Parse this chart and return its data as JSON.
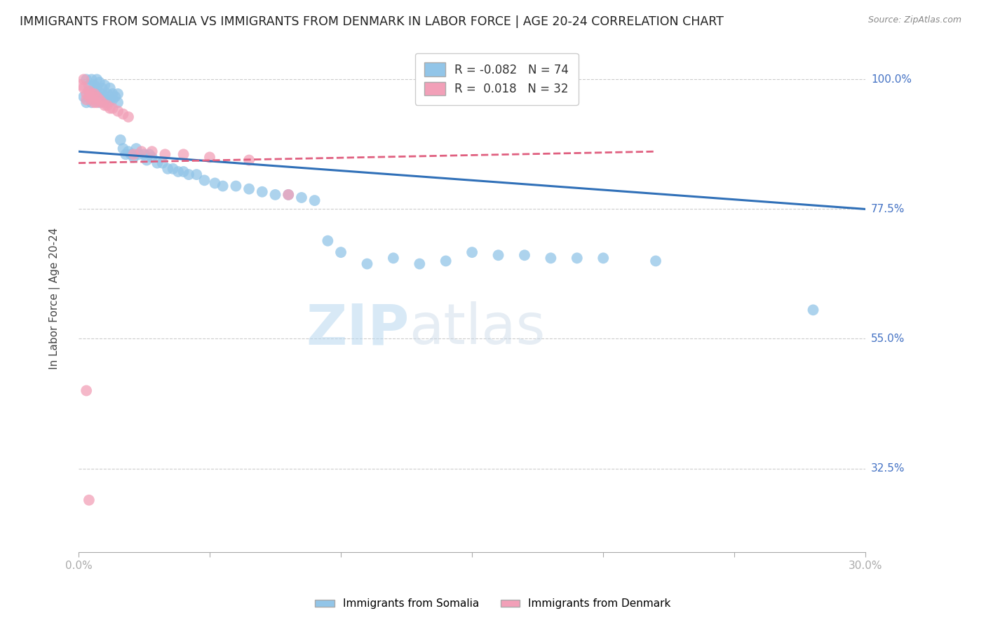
{
  "title": "IMMIGRANTS FROM SOMALIA VS IMMIGRANTS FROM DENMARK IN LABOR FORCE | AGE 20-24 CORRELATION CHART",
  "source": "Source: ZipAtlas.com",
  "ylabel": "In Labor Force | Age 20-24",
  "xlim": [
    0.0,
    0.3
  ],
  "ylim": [
    0.18,
    1.06
  ],
  "xticks": [
    0.0,
    0.05,
    0.1,
    0.15,
    0.2,
    0.25,
    0.3
  ],
  "xticklabels": [
    "0.0%",
    "",
    "",
    "",
    "",
    "",
    "30.0%"
  ],
  "yticks": [
    0.325,
    0.55,
    0.775,
    1.0
  ],
  "yticklabels": [
    "32.5%",
    "55.0%",
    "77.5%",
    "100.0%"
  ],
  "somalia_color": "#92c5e8",
  "denmark_color": "#f2a0b8",
  "somalia_line_color": "#3070b8",
  "denmark_line_color": "#e06080",
  "somalia_R": -0.082,
  "somalia_N": 74,
  "denmark_R": 0.018,
  "denmark_N": 32,
  "watermark_zip": "ZIP",
  "watermark_atlas": "atlas",
  "background_color": "#ffffff",
  "grid_color": "#cccccc",
  "title_fontsize": 12.5,
  "axis_label_fontsize": 11,
  "tick_fontsize": 11,
  "somalia_points_x": [
    0.002,
    0.003,
    0.003,
    0.004,
    0.004,
    0.005,
    0.005,
    0.005,
    0.006,
    0.006,
    0.006,
    0.007,
    0.007,
    0.007,
    0.008,
    0.008,
    0.008,
    0.009,
    0.009,
    0.01,
    0.01,
    0.011,
    0.011,
    0.012,
    0.012,
    0.013,
    0.013,
    0.014,
    0.015,
    0.015,
    0.016,
    0.017,
    0.018,
    0.019,
    0.02,
    0.021,
    0.022,
    0.023,
    0.025,
    0.026,
    0.027,
    0.028,
    0.03,
    0.032,
    0.034,
    0.036,
    0.038,
    0.04,
    0.042,
    0.045,
    0.048,
    0.052,
    0.055,
    0.06,
    0.065,
    0.07,
    0.075,
    0.08,
    0.085,
    0.09,
    0.095,
    0.1,
    0.11,
    0.12,
    0.13,
    0.14,
    0.15,
    0.16,
    0.17,
    0.18,
    0.19,
    0.2,
    0.22,
    0.28
  ],
  "somalia_points_y": [
    0.97,
    0.96,
    1.0,
    0.98,
    0.99,
    1.0,
    0.97,
    0.96,
    0.99,
    0.98,
    0.97,
    1.0,
    0.985,
    0.975,
    0.995,
    0.97,
    0.96,
    0.985,
    0.975,
    0.99,
    0.97,
    0.975,
    0.96,
    0.985,
    0.965,
    0.975,
    0.965,
    0.97,
    0.975,
    0.96,
    0.895,
    0.88,
    0.87,
    0.875,
    0.87,
    0.865,
    0.88,
    0.87,
    0.87,
    0.86,
    0.87,
    0.865,
    0.855,
    0.855,
    0.845,
    0.845,
    0.84,
    0.84,
    0.835,
    0.835,
    0.825,
    0.82,
    0.815,
    0.815,
    0.81,
    0.805,
    0.8,
    0.8,
    0.795,
    0.79,
    0.72,
    0.7,
    0.68,
    0.69,
    0.68,
    0.685,
    0.7,
    0.695,
    0.695,
    0.69,
    0.69,
    0.69,
    0.685,
    0.6
  ],
  "denmark_points_x": [
    0.001,
    0.002,
    0.002,
    0.003,
    0.003,
    0.004,
    0.004,
    0.005,
    0.005,
    0.006,
    0.006,
    0.007,
    0.007,
    0.008,
    0.009,
    0.01,
    0.011,
    0.012,
    0.013,
    0.015,
    0.017,
    0.019,
    0.021,
    0.024,
    0.028,
    0.033,
    0.04,
    0.05,
    0.065,
    0.08,
    0.003,
    0.004
  ],
  "denmark_points_y": [
    0.99,
    1.0,
    0.985,
    0.975,
    0.965,
    0.98,
    0.97,
    0.975,
    0.965,
    0.975,
    0.96,
    0.97,
    0.96,
    0.965,
    0.96,
    0.955,
    0.955,
    0.95,
    0.95,
    0.945,
    0.94,
    0.935,
    0.87,
    0.875,
    0.875,
    0.87,
    0.87,
    0.865,
    0.86,
    0.8,
    0.46,
    0.27
  ],
  "somalia_trend_x": [
    0.0,
    0.3
  ],
  "somalia_trend_y": [
    0.875,
    0.775
  ],
  "denmark_trend_x": [
    0.0,
    0.22
  ],
  "denmark_trend_y": [
    0.855,
    0.875
  ]
}
